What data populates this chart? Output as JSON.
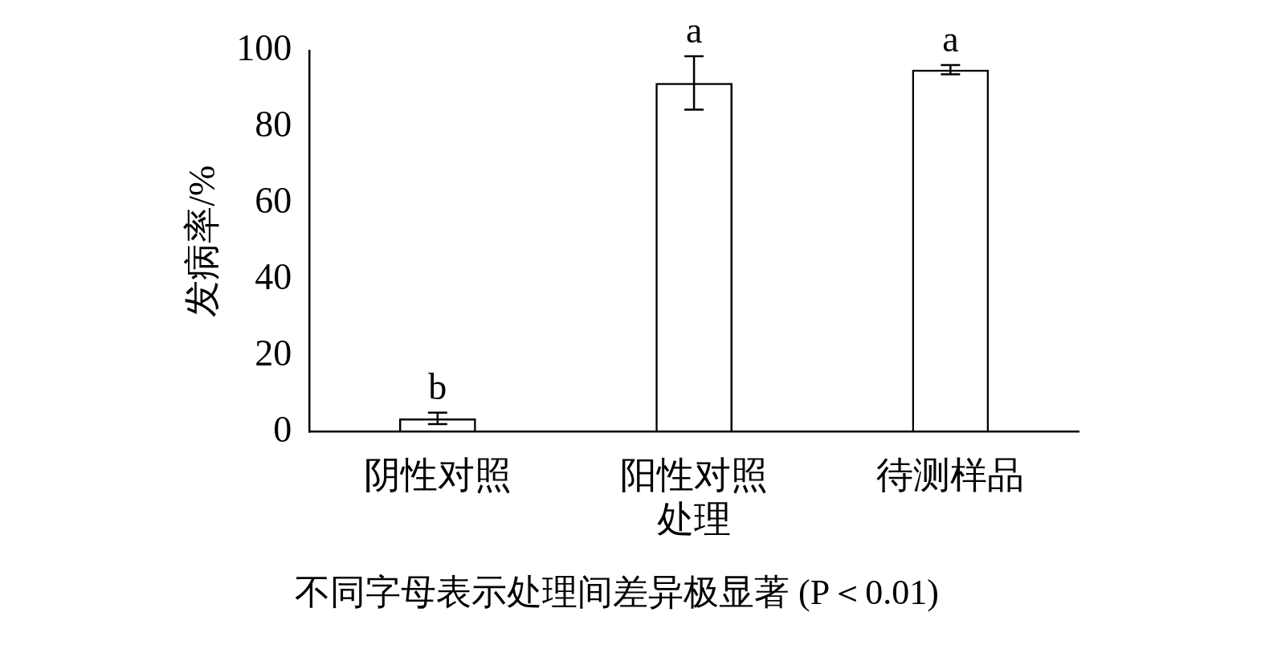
{
  "chart_data": {
    "type": "bar",
    "ylabel": "发病率/%",
    "categories": [
      "阴性对照",
      "阳性对照处理",
      "待测样品"
    ],
    "values": [
      3.5,
      91.5,
      95
    ],
    "errors": [
      1.5,
      7,
      1.2
    ],
    "color": "#000000",
    "ylim": [
      0,
      100
    ],
    "yticks": [
      0,
      20,
      40,
      60,
      80,
      100
    ],
    "grid": false,
    "legend": false,
    "annotations": [
      {
        "text": "b",
        "x": "阴性对照",
        "y": 5
      },
      {
        "text": "a",
        "x": "阳性对照处理",
        "y": 98.5
      },
      {
        "text": "a",
        "x": "待测样品",
        "y": 96.2
      },
      "不同字母表示处理间差异极显著 (P＜0.01)"
    ]
  }
}
